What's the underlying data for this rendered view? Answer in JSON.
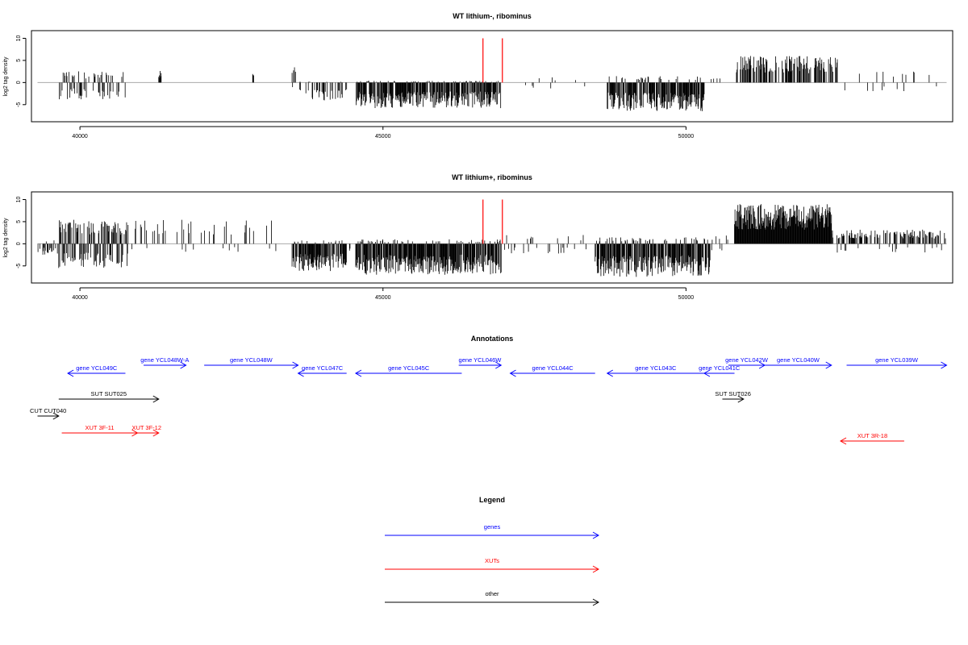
{
  "colors": {
    "genes": "#0000ff",
    "xuts": "#ff0000",
    "other": "#000000",
    "baseline": "#aaaaaa",
    "marker": "#ff0000"
  },
  "chart_data": [
    {
      "type": "bar",
      "title": "WT lithium-, ribominus",
      "ylabel": "log2 tag density",
      "xlim": [
        39200,
        54400
      ],
      "ylim": [
        -8.5,
        11
      ],
      "xticks": [
        40000,
        45000,
        50000
      ],
      "yticks": [
        -5,
        0,
        5,
        10
      ],
      "red_markers_x": [
        46650,
        46970
      ],
      "series_regions": [
        {
          "start": 39650,
          "end": 40750,
          "density": 0.45,
          "amp_pos": 2.6,
          "amp_neg": -3.8
        },
        {
          "start": 41300,
          "end": 41340,
          "density": 0.9,
          "amp_pos": 2.8,
          "amp_neg": 0
        },
        {
          "start": 42850,
          "end": 42870,
          "density": 1,
          "amp_pos": 2.2,
          "amp_neg": 0
        },
        {
          "start": 43500,
          "end": 43560,
          "density": 0.6,
          "amp_pos": 3.5,
          "amp_neg": -1.2
        },
        {
          "start": 43600,
          "end": 44400,
          "density": 0.4,
          "amp_pos": 0.3,
          "amp_neg": -4.2
        },
        {
          "start": 44550,
          "end": 46950,
          "density": 0.9,
          "amp_pos": 0.4,
          "amp_neg": -5.8
        },
        {
          "start": 47000,
          "end": 48500,
          "density": 0.07,
          "amp_pos": 1.2,
          "amp_neg": -1.5
        },
        {
          "start": 48700,
          "end": 50300,
          "density": 0.9,
          "amp_pos": 1.5,
          "amp_neg": -6.5
        },
        {
          "start": 50400,
          "end": 50600,
          "density": 0.1,
          "amp_pos": 1.5,
          "amp_neg": 0
        },
        {
          "start": 50800,
          "end": 52500,
          "density": 0.55,
          "amp_pos": 6.0,
          "amp_neg": 0
        },
        {
          "start": 52500,
          "end": 54300,
          "density": 0.08,
          "amp_pos": 2.5,
          "amp_neg": -2.0
        }
      ]
    },
    {
      "type": "bar",
      "title": "WT lithium+, ribominus",
      "ylabel": "log2 tag density",
      "xlim": [
        39200,
        54400
      ],
      "ylim": [
        -8.5,
        11
      ],
      "xticks": [
        40000,
        45000,
        50000
      ],
      "yticks": [
        -5,
        0,
        5,
        10
      ],
      "red_markers_x": [
        46650,
        46970
      ],
      "series_regions": [
        {
          "start": 39300,
          "end": 39650,
          "density": 0.35,
          "amp_pos": 1.5,
          "amp_neg": -2.5
        },
        {
          "start": 39650,
          "end": 40800,
          "density": 0.85,
          "amp_pos": 5.5,
          "amp_neg": -5.5
        },
        {
          "start": 40800,
          "end": 43300,
          "density": 0.15,
          "amp_pos": 5.5,
          "amp_neg": -1.8
        },
        {
          "start": 43500,
          "end": 44400,
          "density": 0.9,
          "amp_pos": 0.8,
          "amp_neg": -6.2
        },
        {
          "start": 44400,
          "end": 44550,
          "density": 0.3,
          "amp_pos": 0.5,
          "amp_neg": -2.0
        },
        {
          "start": 44550,
          "end": 46950,
          "density": 0.95,
          "amp_pos": 1.0,
          "amp_neg": -7.0
        },
        {
          "start": 47000,
          "end": 48500,
          "density": 0.12,
          "amp_pos": 2.0,
          "amp_neg": -2.2
        },
        {
          "start": 48500,
          "end": 50400,
          "density": 0.95,
          "amp_pos": 1.5,
          "amp_neg": -7.5
        },
        {
          "start": 50400,
          "end": 50750,
          "density": 0.3,
          "amp_pos": 2.0,
          "amp_neg": -1.5
        },
        {
          "start": 50800,
          "end": 52400,
          "density": 1.0,
          "amp_pos": 9.0,
          "amp_neg": 0
        },
        {
          "start": 52400,
          "end": 54300,
          "density": 0.45,
          "amp_pos": 3.2,
          "amp_neg": -2.0
        }
      ]
    }
  ],
  "annotations": {
    "title": "Annotations",
    "items": [
      {
        "label": "gene YCL049C",
        "kind": "genes",
        "start": 40750,
        "end": 39800,
        "row": 1
      },
      {
        "label": "gene YCL048W-A",
        "kind": "genes",
        "start": 41050,
        "end": 41750,
        "row": 0
      },
      {
        "label": "gene YCL048W",
        "kind": "genes",
        "start": 42050,
        "end": 43600,
        "row": 0
      },
      {
        "label": "gene YCL047C",
        "kind": "genes",
        "start": 44400,
        "end": 43600,
        "row": 1
      },
      {
        "label": "gene YCL045C",
        "kind": "genes",
        "start": 46300,
        "end": 44550,
        "row": 1
      },
      {
        "label": "gene YCL046W",
        "kind": "genes",
        "start": 46250,
        "end": 46950,
        "row": 0
      },
      {
        "label": "gene YCL044C",
        "kind": "genes",
        "start": 48500,
        "end": 47100,
        "row": 1
      },
      {
        "label": "gene YCL043C",
        "kind": "genes",
        "start": 50300,
        "end": 48700,
        "row": 1
      },
      {
        "label": "gene YCL041C",
        "kind": "genes",
        "start": 50800,
        "end": 50300,
        "row": 1
      },
      {
        "label": "gene YCL042W",
        "kind": "genes",
        "start": 50700,
        "end": 51300,
        "row": 0
      },
      {
        "label": "gene YCL040W",
        "kind": "genes",
        "start": 51300,
        "end": 52400,
        "row": 0
      },
      {
        "label": "gene YCL039W",
        "kind": "genes",
        "start": 52650,
        "end": 54300,
        "row": 0
      },
      {
        "label": "SUT SUT025",
        "kind": "other",
        "start": 39650,
        "end": 41300,
        "row": 3
      },
      {
        "label": "SUT SUT026",
        "kind": "other",
        "start": 50600,
        "end": 50950,
        "row": 3
      },
      {
        "label": "CUT CUT040",
        "kind": "other",
        "start": 39300,
        "end": 39650,
        "row": 4
      },
      {
        "label": "XUT 3F-11",
        "kind": "xuts",
        "start": 39700,
        "end": 40950,
        "row": 5
      },
      {
        "label": "XUT 3F-12",
        "kind": "xuts",
        "start": 40900,
        "end": 41300,
        "row": 5
      },
      {
        "label": "XUT 3R-18",
        "kind": "xuts",
        "start": 53600,
        "end": 52550,
        "row": 6
      }
    ]
  },
  "legend": {
    "title": "Legend",
    "items": [
      {
        "label": "genes",
        "kind": "genes"
      },
      {
        "label": "XUTs",
        "kind": "xuts"
      },
      {
        "label": "other",
        "kind": "other"
      }
    ]
  }
}
